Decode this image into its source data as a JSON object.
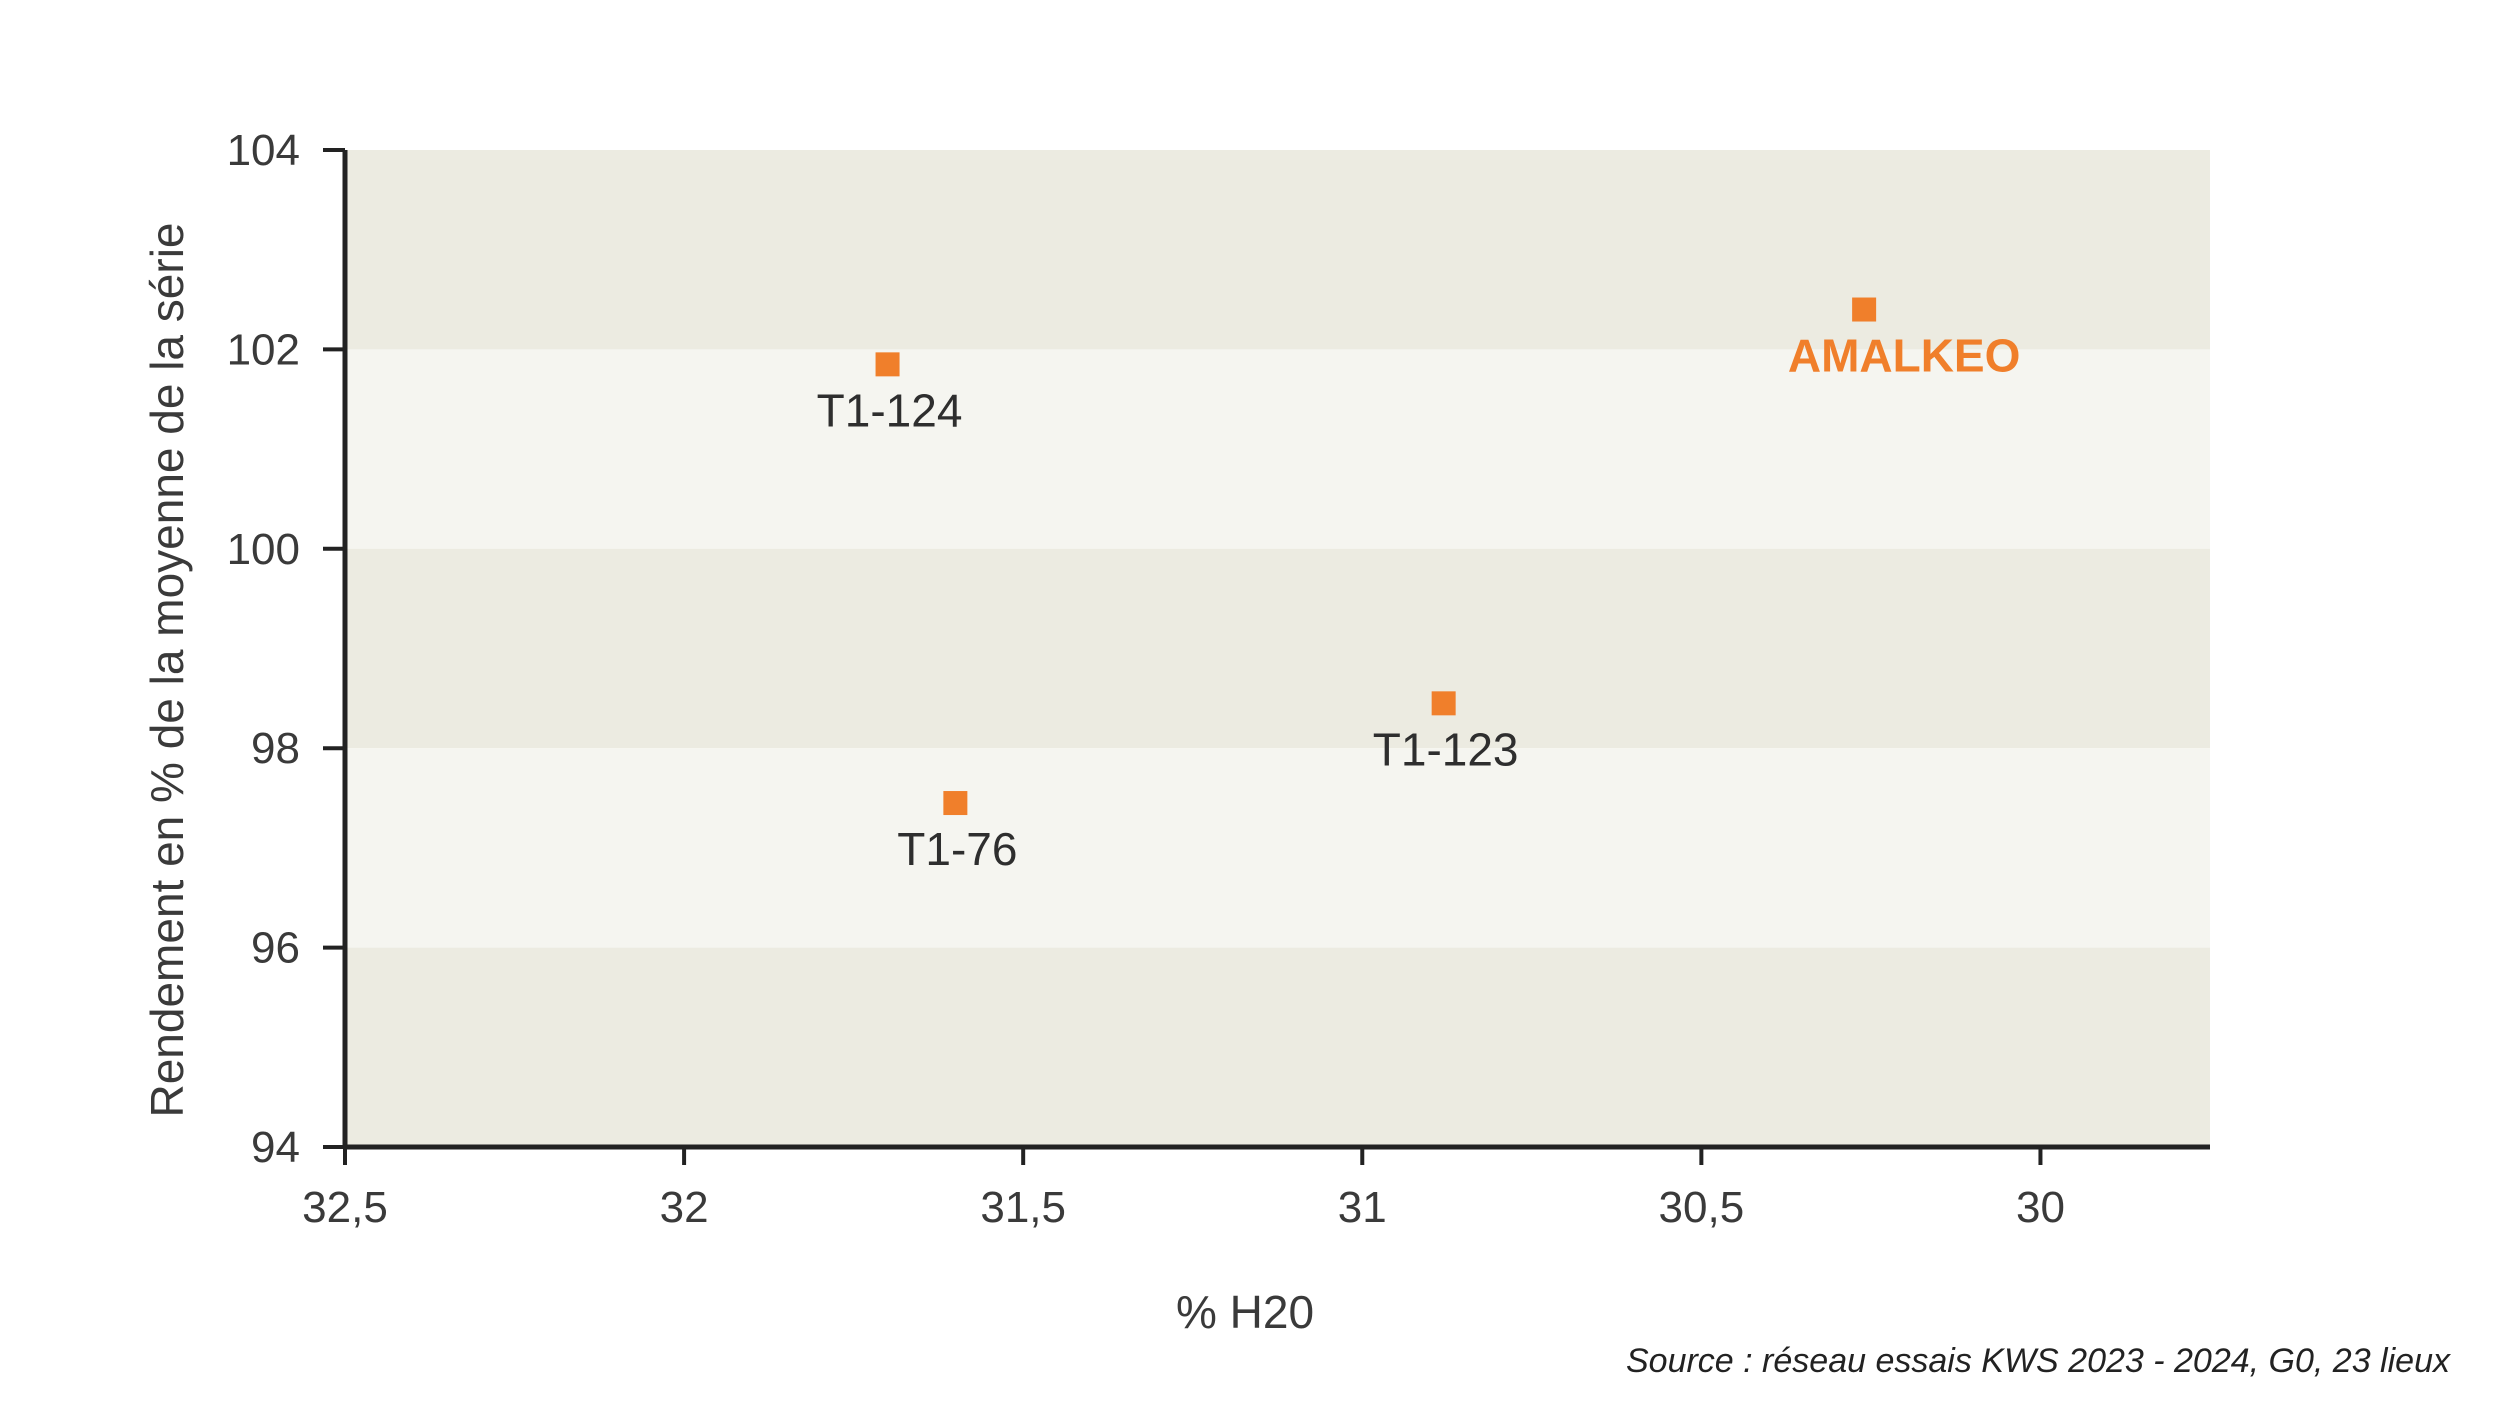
{
  "chart_data": {
    "type": "scatter",
    "xlabel": "% H20",
    "ylabel": "Rendement en % de la moyenne de la série",
    "xlim": [
      32.5,
      29.75
    ],
    "x_reversed": true,
    "ylim": [
      94,
      104
    ],
    "x_ticks": [
      32.5,
      32,
      31.5,
      31,
      30.5,
      30
    ],
    "x_tick_labels": [
      "32,5",
      "32",
      "31,5",
      "31",
      "30,5",
      "30"
    ],
    "y_ticks": [
      94,
      96,
      98,
      100,
      102,
      104
    ],
    "y_tick_labels": [
      "94",
      "96",
      "98",
      "100",
      "102",
      "104"
    ],
    "bands": [
      {
        "from": 102,
        "to": 104,
        "color": "#ecebe1"
      },
      {
        "from": 100,
        "to": 102,
        "color": "#f5f5f0"
      },
      {
        "from": 98,
        "to": 100,
        "color": "#ecebe1"
      },
      {
        "from": 96,
        "to": 98,
        "color": "#f5f5f0"
      },
      {
        "from": 94,
        "to": 96,
        "color": "#ecebe1"
      }
    ],
    "points": [
      {
        "label": "T1-124",
        "x": 31.7,
        "y": 101.85,
        "highlight": false
      },
      {
        "label": "AMALKEO",
        "x": 30.26,
        "y": 102.4,
        "highlight": true
      },
      {
        "label": "T1-123",
        "x": 30.88,
        "y": 98.45,
        "highlight": false
      },
      {
        "label": "T1-76",
        "x": 31.6,
        "y": 97.45,
        "highlight": false
      }
    ],
    "marker_color": "#f07f2b",
    "highlight_color": "#f07f2b",
    "grid": false
  },
  "source": "Source : réseau essais KWS 2023 - 2024, G0, 23 lieux"
}
